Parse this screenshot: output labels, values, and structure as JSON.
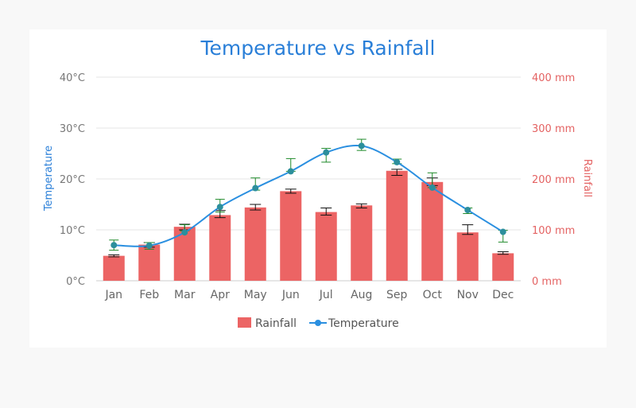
{
  "chart_data": {
    "type": "bar+line",
    "title": "Temperature vs Rainfall",
    "categories": [
      "Jan",
      "Feb",
      "Mar",
      "Apr",
      "May",
      "Jun",
      "Jul",
      "Aug",
      "Sep",
      "Oct",
      "Nov",
      "Dec"
    ],
    "y_left": {
      "label": "Temperature",
      "ticks": [
        "0°C",
        "10°C",
        "20°C",
        "30°C",
        "40°C"
      ],
      "range": [
        0,
        40
      ]
    },
    "y_right": {
      "label": "Rainfall",
      "ticks": [
        "0 mm",
        "100 mm",
        "200 mm",
        "300 mm",
        "400 mm"
      ],
      "range": [
        0,
        400
      ]
    },
    "grid": true,
    "legend_position": "bottom",
    "series": [
      {
        "name": "Rainfall",
        "type": "bar",
        "axis": "right",
        "color": "#ec6464",
        "values": [
          49,
          71,
          106,
          129,
          144,
          176,
          135,
          148,
          216,
          194,
          95,
          54
        ],
        "error_low": [
          47,
          66,
          100,
          124,
          139,
          172,
          129,
          143,
          207,
          187,
          91,
          52
        ],
        "error_high": [
          51,
          75,
          111,
          138,
          150,
          180,
          143,
          151,
          219,
          202,
          110,
          57
        ]
      },
      {
        "name": "Temperature",
        "type": "spline",
        "axis": "left",
        "color": "#2a8fe0",
        "values": [
          7.0,
          6.9,
          9.5,
          14.5,
          18.2,
          21.5,
          25.2,
          26.5,
          23.3,
          18.3,
          13.9,
          9.6
        ],
        "error_low": [
          6.0,
          6.2,
          9.8,
          13.5,
          17.8,
          21.5,
          23.3,
          25.6,
          23.0,
          18.3,
          13.2,
          7.6
        ],
        "error_high": [
          8.0,
          7.5,
          11.0,
          16.0,
          20.2,
          24.0,
          26.0,
          27.8,
          23.9,
          21.2,
          14.3,
          9.9
        ]
      }
    ]
  }
}
